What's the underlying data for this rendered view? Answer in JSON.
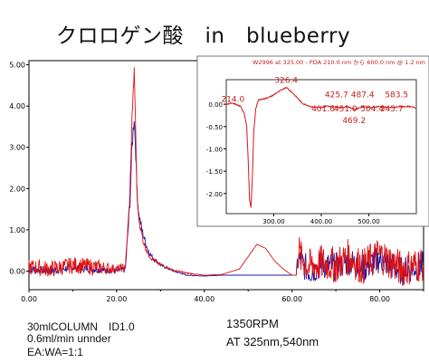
{
  "title": "クロロゲン酸　in　blueberry",
  "notes": {
    "column": "30mlCOLUMN　ID1.0",
    "flow": "0.6ml/min unnder",
    "eluent": "EA:WA=1:1",
    "rpm": "1350RPM",
    "wavelength": "AT 325nm,540nm"
  },
  "chart_data": [
    {
      "type": "line",
      "name": "chromatogram",
      "xlim": [
        0,
        90
      ],
      "ylim": [
        -0.45,
        5.1
      ],
      "xticks": [
        "0.00",
        "20.00",
        "40.00",
        "60.00",
        "80.00"
      ],
      "xtick_values": [
        0,
        20,
        40,
        60,
        80
      ],
      "yticks": [
        "0.00",
        "1.00",
        "2.00",
        "3.00",
        "4.00",
        "5.00"
      ],
      "ytick_values": [
        0,
        1,
        2,
        3,
        4,
        5
      ],
      "colors": {
        "red": "#e01010",
        "blue": "#1a1aa8"
      },
      "series": [
        {
          "color": "red",
          "x": [
            0,
            5,
            10,
            15,
            20,
            22,
            23,
            23.5,
            24,
            24.3,
            24.6,
            25,
            26,
            27,
            28,
            30,
            33,
            36,
            40,
            44,
            48,
            50,
            52,
            54,
            56,
            58,
            60,
            61,
            61.3,
            62,
            64,
            67,
            70,
            73,
            76,
            80,
            85,
            90
          ],
          "y": [
            0.1,
            0.05,
            0.15,
            0.1,
            0.05,
            0.1,
            1.8,
            3.7,
            4.85,
            3.7,
            2.0,
            1.3,
            0.75,
            0.45,
            0.3,
            0.15,
            0.02,
            -0.05,
            -0.1,
            -0.08,
            0.05,
            0.35,
            0.65,
            0.55,
            0.25,
            0.05,
            -0.1,
            -0.1,
            0.6,
            0.3,
            0.1,
            0.2,
            0.15,
            0.35,
            0.1,
            0.4,
            0.05,
            0.2
          ],
          "noise": [
            0.2,
            0.2,
            0.2,
            0.2,
            0.1,
            0.1,
            0.1,
            0.1,
            0.1,
            0.1,
            0.1,
            0.1,
            0.08,
            0.06,
            0.05,
            0.03,
            0.02,
            0.02,
            0.0,
            0.0,
            0.0,
            0.0,
            0.0,
            0.0,
            0.0,
            0.0,
            0.0,
            0.0,
            0.5,
            0.45,
            0.45,
            0.45,
            0.45,
            0.45,
            0.45,
            0.45,
            0.45,
            0.45
          ]
        },
        {
          "color": "blue",
          "x": [
            0,
            5,
            10,
            15,
            20,
            22,
            23,
            23.5,
            24,
            24.3,
            24.6,
            25,
            26,
            27,
            28,
            30,
            33,
            36,
            40,
            44,
            48,
            52,
            56,
            60,
            61,
            61.3,
            62,
            64,
            67,
            70,
            73,
            76,
            80,
            85,
            90
          ],
          "y": [
            0.05,
            0.0,
            0.1,
            0.05,
            0.0,
            0.05,
            1.6,
            3.0,
            3.75,
            3.1,
            2.0,
            1.4,
            0.9,
            0.55,
            0.35,
            0.15,
            0.0,
            -0.1,
            -0.12,
            -0.1,
            -0.1,
            -0.1,
            -0.1,
            -0.1,
            -0.1,
            0.3,
            0.2,
            0.0,
            0.15,
            0.1,
            0.25,
            0.05,
            0.3,
            0.0,
            0.15
          ],
          "noise": [
            0.1,
            0.1,
            0.1,
            0.1,
            0.05,
            0.1,
            0.2,
            0.2,
            0.2,
            0.2,
            0.15,
            0.12,
            0.1,
            0.08,
            0.06,
            0.04,
            0.02,
            0.01,
            0.0,
            0.0,
            0.0,
            0.0,
            0.0,
            0.0,
            0.0,
            0.4,
            0.35,
            0.35,
            0.35,
            0.35,
            0.35,
            0.35,
            0.35,
            0.35,
            0.35
          ]
        }
      ]
    },
    {
      "type": "line",
      "name": "spectrum-inset",
      "header": "W2996 at 325.00 - PDA 210.0 nm から 600.0 nm @ 1.2 nm",
      "xlim": [
        200,
        600
      ],
      "ylim": [
        -2.45,
        0.55
      ],
      "xticks": [
        "300.00",
        "400.00",
        "500.00"
      ],
      "xtick_values": [
        300,
        400,
        500
      ],
      "yticks": [
        "0.00",
        "-0.50",
        "-1.00",
        "-1.50",
        "-2.00"
      ],
      "ytick_values": [
        0,
        -0.5,
        -1,
        -1.5,
        -2
      ],
      "annotations": [
        "214.0",
        "326.4",
        "425.7",
        "487.4",
        "583.5",
        "401.6",
        "451.0",
        "504.4",
        "545.7",
        "469.2"
      ],
      "series": [
        {
          "color": "red",
          "x": [
            200,
            210,
            220,
            230,
            238,
            243,
            246,
            249,
            252,
            255,
            258,
            262,
            268,
            280,
            295,
            310,
            326,
            340,
            360,
            380,
            400,
            410,
            425,
            440,
            455,
            470,
            487,
            505,
            520,
            545,
            560,
            583,
            600
          ],
          "y": [
            0.0,
            0.02,
            0.0,
            -0.05,
            -0.2,
            -0.5,
            -1.2,
            -2.15,
            -2.32,
            -1.6,
            -0.6,
            -0.1,
            0.1,
            0.12,
            0.18,
            0.28,
            0.38,
            0.25,
            0.02,
            -0.06,
            -0.08,
            -0.04,
            -0.05,
            -0.08,
            -0.05,
            -0.12,
            -0.05,
            -0.08,
            -0.05,
            -0.08,
            -0.06,
            -0.05,
            -0.08
          ]
        }
      ]
    }
  ]
}
